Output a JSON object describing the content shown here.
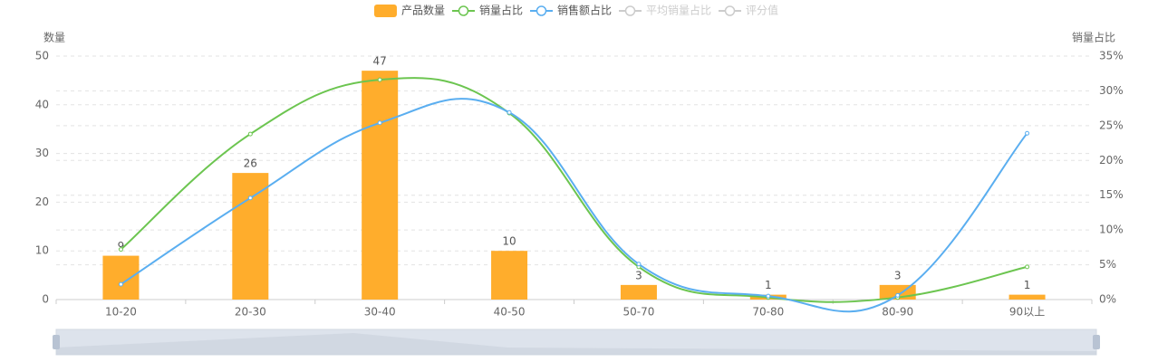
{
  "chart_data": {
    "type": "bar-line",
    "categories": [
      "10-20",
      "20-30",
      "30-40",
      "40-50",
      "50-70",
      "70-80",
      "80-90",
      "90以上"
    ],
    "y_axis_name": "数量",
    "y2_axis_name": "销量占比",
    "ylim": [
      0,
      50
    ],
    "yticks": [
      0,
      10,
      20,
      30,
      40,
      50
    ],
    "y2lim": [
      0,
      35
    ],
    "y2ticks": [
      {
        "value": 0,
        "label": "0%"
      },
      {
        "value": 5,
        "label": "5%"
      },
      {
        "value": 10,
        "label": "10%"
      },
      {
        "value": 15,
        "label": "15%"
      },
      {
        "value": 20,
        "label": "20%"
      },
      {
        "value": 25,
        "label": "25%"
      },
      {
        "value": 30,
        "label": "30%"
      },
      {
        "value": 35,
        "label": "35%"
      }
    ],
    "grid": true,
    "series": [
      {
        "name": "产品数量",
        "type": "bar",
        "color": "#ffad2c",
        "values": [
          9,
          26,
          47,
          10,
          3,
          1,
          3,
          1
        ]
      },
      {
        "name": "销量占比",
        "type": "line",
        "axis": "y2",
        "color": "#6cc550",
        "values": [
          7.2,
          23.8,
          31.6,
          26.8,
          4.7,
          0.3,
          0.3,
          4.7
        ]
      },
      {
        "name": "销售额占比",
        "type": "line",
        "axis": "y2",
        "color": "#5aaef0",
        "values": [
          2.2,
          14.6,
          25.4,
          26.9,
          5.1,
          0.5,
          0.6,
          23.9
        ]
      }
    ],
    "legend_inactive": [
      "平均销量占比",
      "评分值"
    ]
  }
}
